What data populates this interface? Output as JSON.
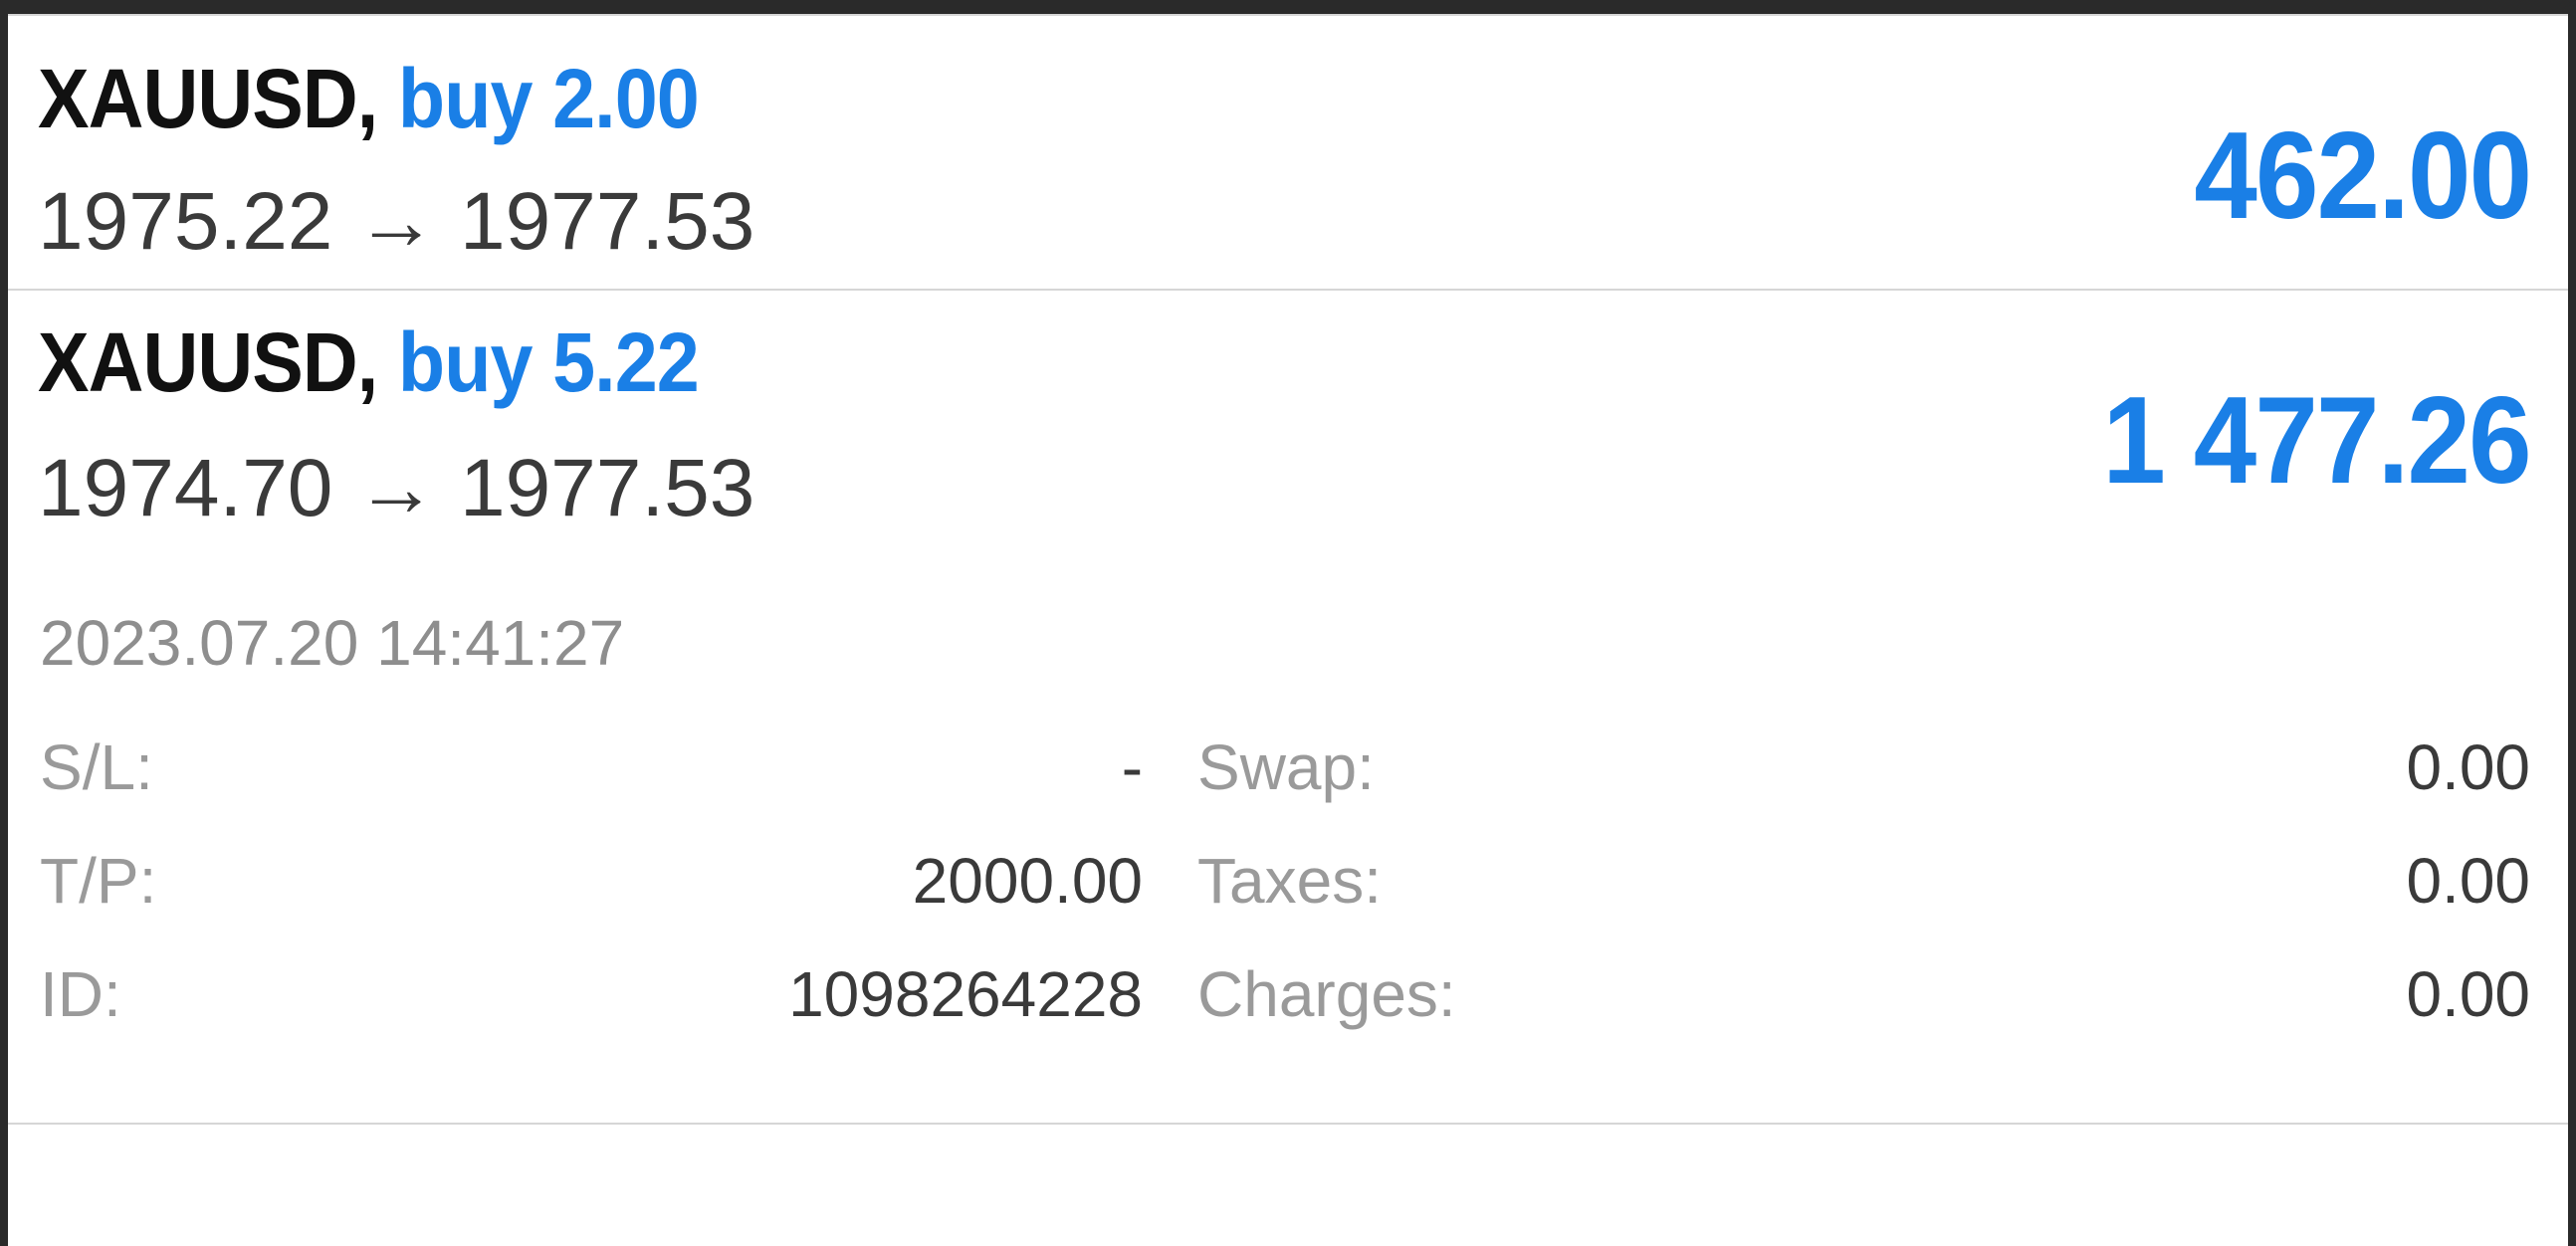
{
  "positions": [
    {
      "symbol": "XAUUSD,",
      "direction": "buy 2.00",
      "prices": "1975.22 → 1977.53",
      "profit": "462.00"
    },
    {
      "symbol": "XAUUSD,",
      "direction": "buy 5.22",
      "prices": "1974.70 → 1977.53",
      "profit": "1 477.26"
    }
  ],
  "details": {
    "timestamp": "2023.07.20 14:41:27",
    "sl_label": "S/L:",
    "sl_value": "-",
    "tp_label": "T/P:",
    "tp_value": "2000.00",
    "id_label": "ID:",
    "id_value": "1098264228",
    "swap_label": "Swap:",
    "swap_value": "0.00",
    "taxes_label": "Taxes:",
    "taxes_value": "0.00",
    "charges_label": "Charges:",
    "charges_value": "0.00"
  },
  "colors": {
    "accent_blue": "#1a7fe6",
    "text_dark": "#111111",
    "text_gray": "#8e8e8e"
  }
}
